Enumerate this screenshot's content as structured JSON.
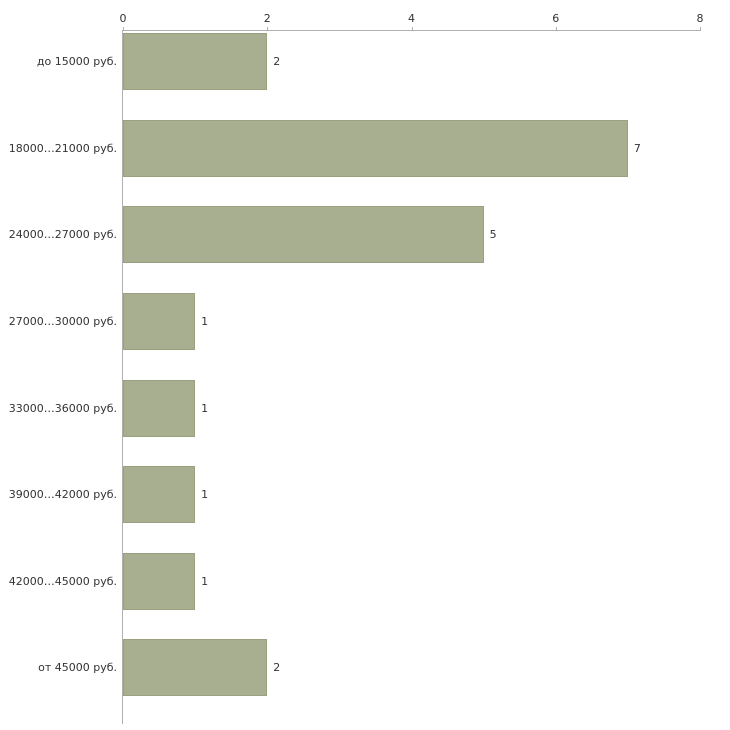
{
  "chart_data": {
    "type": "bar",
    "orientation": "horizontal",
    "title": "",
    "xlabel": "",
    "ylabel": "",
    "categories": [
      "до 15000 руб.",
      "18000…21000 руб.",
      "24000…27000 руб.",
      "27000…30000 руб.",
      "33000…36000 руб.",
      "39000…42000 руб.",
      "42000…45000 руб.",
      "от 45000 руб."
    ],
    "values": [
      2,
      7,
      5,
      1,
      1,
      1,
      1,
      2
    ],
    "x_ticks": [
      0,
      2,
      4,
      6,
      8
    ],
    "xlim": [
      0,
      8
    ],
    "axis_position": "top",
    "grid": false,
    "legend": "none",
    "bar_color": "#a8af90",
    "bar_border_color": "#99a181",
    "axis_color": "#b0b0b0",
    "label_color": "#333333",
    "background_color": "#ffffff"
  }
}
